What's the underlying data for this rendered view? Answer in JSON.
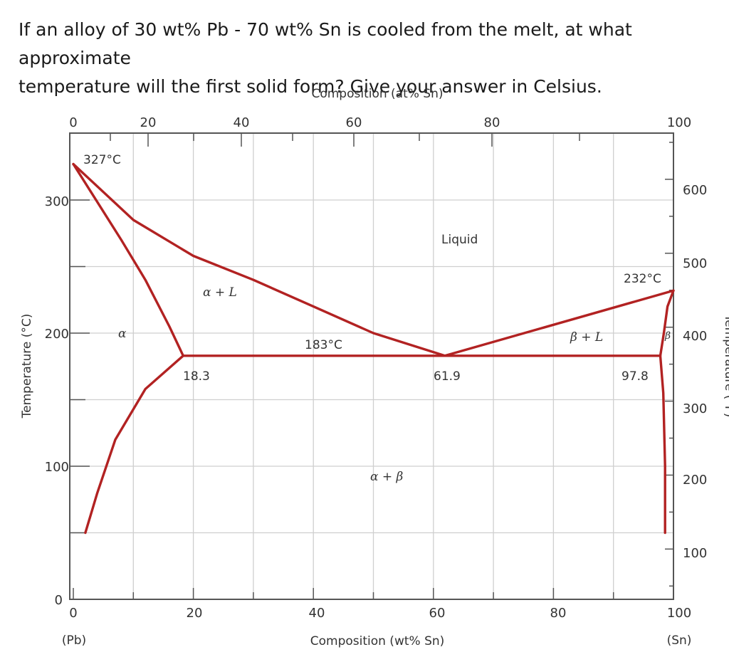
{
  "question": {
    "line1": "If an alloy of 30 wt% Pb - 70 wt% Sn is cooled from the melt, at what approximate",
    "line2": "temperature will the first solid form? Give your answer in Celsius."
  },
  "chart_data": {
    "type": "line",
    "title_top_axis": "Composition (at% Sn)",
    "xlabel": "Composition (wt% Sn)",
    "ylabel": "Temperature (°C)",
    "ylabel_right": "Temperature (°F)",
    "xlim": [
      0,
      100
    ],
    "ylim": [
      0,
      350
    ],
    "x_ticks": [
      "0",
      "20",
      "40",
      "60",
      "80",
      "100"
    ],
    "x_top_ticks": [
      "0",
      "20",
      "40",
      "60",
      "80",
      "100"
    ],
    "y_ticks": [
      "0",
      "100",
      "200",
      "300"
    ],
    "y_right_ticks": [
      "100",
      "200",
      "300",
      "400",
      "500",
      "600"
    ],
    "x_end_labels": {
      "left": "(Pb)",
      "right": "(Sn)"
    },
    "grid": true,
    "series": [
      {
        "points": [
          [
            0,
            327
          ],
          [
            10,
            285
          ],
          [
            20,
            258
          ],
          [
            30,
            240
          ],
          [
            40,
            220
          ],
          [
            50,
            200
          ],
          [
            61.9,
            183
          ]
        ]
      },
      {
        "points": [
          [
            0,
            327
          ],
          [
            8,
            270
          ],
          [
            12,
            240
          ],
          [
            16,
            205
          ],
          [
            18.3,
            183
          ]
        ]
      },
      {
        "points": [
          [
            18.3,
            183
          ],
          [
            12,
            158
          ],
          [
            7,
            120
          ],
          [
            4,
            80
          ],
          [
            2,
            50
          ]
        ]
      },
      {
        "points": [
          [
            18.3,
            183
          ],
          [
            97.8,
            183
          ]
        ]
      },
      {
        "points": [
          [
            61.9,
            183
          ],
          [
            100,
            232
          ]
        ]
      },
      {
        "points": [
          [
            100,
            232
          ],
          [
            99,
            220
          ],
          [
            98.4,
            200
          ],
          [
            97.8,
            183
          ],
          [
            98.3,
            155
          ],
          [
            98.6,
            100
          ],
          [
            98.6,
            50
          ]
        ]
      }
    ],
    "annotations": {
      "pb_melt": "327°C",
      "sn_melt": "232°C",
      "eutectic_temp": "183°C",
      "alpha_limit": "18.3",
      "eutectic_comp": "61.9",
      "beta_limit": "97.8",
      "liquid": "Liquid",
      "alpha_L": "α + L",
      "beta_L": "β + L",
      "alpha": "α",
      "beta": "β",
      "alpha_beta": "α + β"
    }
  }
}
